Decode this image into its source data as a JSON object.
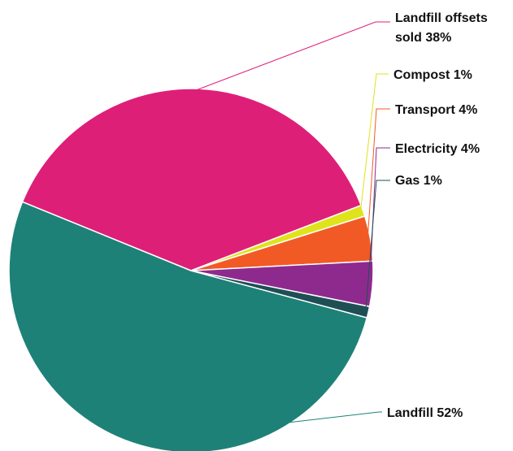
{
  "chart_data": {
    "type": "pie",
    "title": "",
    "legend": "none",
    "slices": [
      {
        "name": "Landfill offsets sold",
        "value": 38,
        "color": "#de1f78",
        "label_lines": [
          "Landfill offsets",
          "sold 38%"
        ]
      },
      {
        "name": "Compost",
        "value": 1,
        "color": "#dfe31b",
        "label_lines": [
          "Compost 1%"
        ]
      },
      {
        "name": "Transport",
        "value": 4,
        "color": "#f25a25",
        "label_lines": [
          "Transport 4%"
        ]
      },
      {
        "name": "Electricity",
        "value": 4,
        "color": "#8e2a8e",
        "label_lines": [
          "Electricity 4%"
        ]
      },
      {
        "name": "Gas",
        "value": 1,
        "color": "#1e4f55",
        "label_lines": [
          "Gas 1%"
        ]
      },
      {
        "name": "Landfill",
        "value": 52,
        "color": "#1e8178",
        "label_lines": [
          "Landfill 52%"
        ]
      }
    ]
  }
}
